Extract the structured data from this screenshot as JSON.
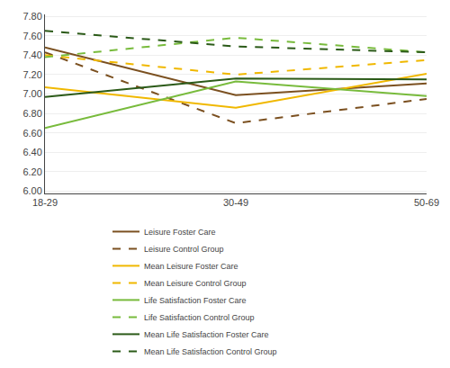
{
  "chart_data": {
    "type": "line",
    "categories": [
      "18-29",
      "30-49",
      "50-69"
    ],
    "series": [
      {
        "name": "Leisure Foster Care",
        "color": "#7B5020",
        "line_style": "solid",
        "values": [
          7.48,
          6.99,
          7.11
        ]
      },
      {
        "name": "Leisure Control Group",
        "color": "#7B5020",
        "line_style": "dashed",
        "values": [
          7.43,
          6.7,
          6.95
        ]
      },
      {
        "name": "Mean Leisure Foster Care",
        "color": "#F0B800",
        "line_style": "solid",
        "values": [
          7.07,
          6.86,
          7.21
        ]
      },
      {
        "name": "Mean Leisure Control Group",
        "color": "#F0B800",
        "line_style": "dashed",
        "values": [
          7.4,
          7.2,
          7.35
        ]
      },
      {
        "name": "Life Satisfaction Foster Care",
        "color": "#78BB3C",
        "line_style": "solid",
        "values": [
          6.65,
          7.13,
          6.98
        ]
      },
      {
        "name": "Life Satisfaction Control Group",
        "color": "#78BB3C",
        "line_style": "dashed",
        "values": [
          7.38,
          7.58,
          7.43
        ]
      },
      {
        "name": "Mean Life Satisfaction Foster Care",
        "color": "#2B5A18",
        "line_style": "solid",
        "values": [
          6.97,
          7.16,
          7.15
        ]
      },
      {
        "name": "Mean Life Satisfaction Control Group",
        "color": "#2B5A18",
        "line_style": "dashed",
        "values": [
          7.65,
          7.49,
          7.43
        ]
      }
    ],
    "ylim": [
      5.98,
      7.82
    ],
    "yticks": [
      {
        "value": 6.0,
        "label": "6.00"
      },
      {
        "value": 6.2,
        "label": "6.20"
      },
      {
        "value": 6.4,
        "label": "6.40"
      },
      {
        "value": 6.6,
        "label": "6.60"
      },
      {
        "value": 6.8,
        "label": "6.80"
      },
      {
        "value": 7.0,
        "label": "7.00"
      },
      {
        "value": 7.2,
        "label": "7.20"
      },
      {
        "value": 7.4,
        "label": "7.40"
      },
      {
        "value": 7.6,
        "label": "7.60"
      },
      {
        "value": 7.8,
        "label": "7.80"
      }
    ],
    "grid": true,
    "legend": "bottom"
  }
}
